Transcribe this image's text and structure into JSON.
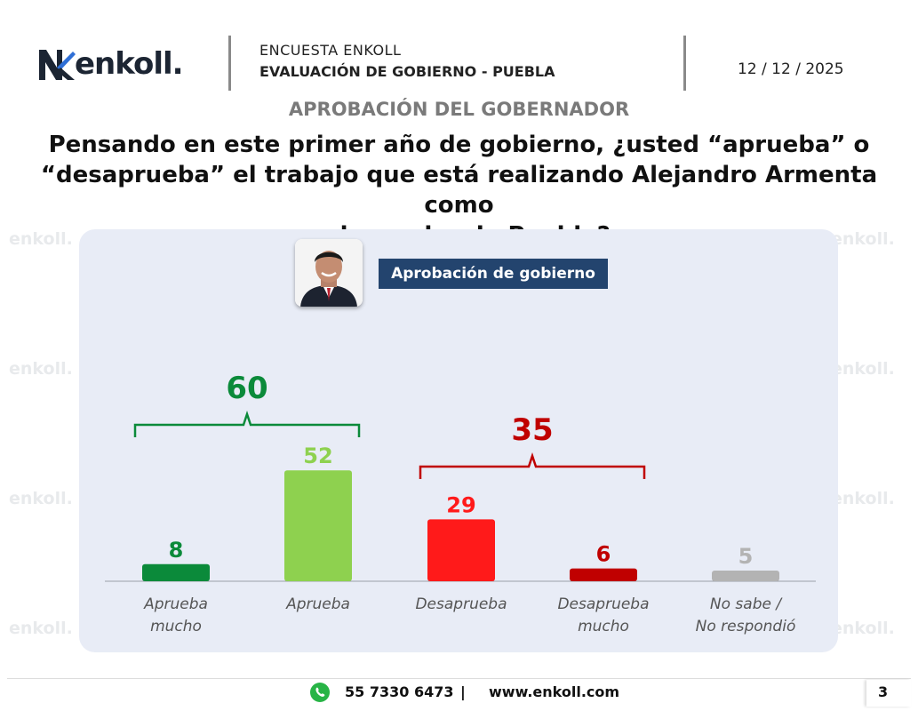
{
  "header": {
    "brand": "enkoll.",
    "survey_title": "ENCUESTA ENKOLL",
    "survey_subtitle": "EVALUACIÓN DE GOBIERNO - PUEBLA",
    "date": "12 / 12 / 2025"
  },
  "section_title": "APROBACIÓN DEL GOBERNADOR",
  "question_lines": [
    "Pensando en este primer año de gobierno, ¿usted “aprueba” o",
    "“desaprueba” el trabajo que está realizando Alejandro Armenta como",
    "gobernador de Puebla?"
  ],
  "panel": {
    "badge": "Aprobación de gobierno"
  },
  "watermark_text": "enkoll.",
  "colors": {
    "dark_green": "#0b8a3a",
    "light_green": "#8ed14f",
    "red": "#ff1a1a",
    "dark_red": "#c00000",
    "gray": "#b3b3b3",
    "badge": "#23446e"
  },
  "chart_data": {
    "type": "bar",
    "categories": [
      [
        "Aprueba",
        "mucho"
      ],
      [
        "Aprueba"
      ],
      [
        "Desaprueba"
      ],
      [
        "Desaprueba",
        "mucho"
      ],
      [
        "No sabe /",
        "No respondió"
      ]
    ],
    "values": [
      8,
      52,
      29,
      6,
      5
    ],
    "bar_colors": [
      "#0b8a3a",
      "#8ed14f",
      "#ff1a1a",
      "#c00000",
      "#b3b3b3"
    ],
    "groups": [
      {
        "label": "60",
        "value": 60,
        "covers": [
          0,
          1
        ],
        "color": "#0b8a3a"
      },
      {
        "label": "35",
        "value": 35,
        "covers": [
          2,
          3
        ],
        "color": "#c00000"
      }
    ],
    "ylim": [
      0,
      60
    ]
  },
  "footer": {
    "phone": "55 7330 6473",
    "separator": "|",
    "website": "www.enkoll.com",
    "page_number": "3",
    "icon": "whatsapp-icon"
  }
}
